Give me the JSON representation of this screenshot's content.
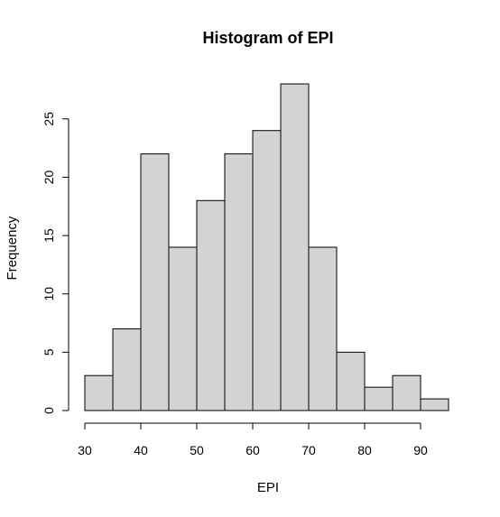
{
  "chart_data": {
    "type": "bar",
    "title": "Histogram of EPI",
    "xlabel": "EPI",
    "ylabel": "Frequency",
    "bin_edges": [
      30,
      35,
      40,
      45,
      50,
      55,
      60,
      65,
      70,
      75,
      80,
      85,
      90,
      95
    ],
    "values": [
      3,
      7,
      22,
      14,
      18,
      22,
      24,
      28,
      14,
      5,
      2,
      3,
      1
    ],
    "xlim": [
      30,
      95
    ],
    "ylim": [
      0,
      28
    ],
    "x_ticks": [
      30,
      40,
      50,
      60,
      70,
      80,
      90
    ],
    "y_ticks": [
      0,
      5,
      10,
      15,
      20,
      25
    ],
    "grid": false,
    "legend": "none",
    "colors": {
      "bar_fill": "#d3d3d3",
      "bar_stroke": "#000000",
      "axis": "#000000"
    }
  }
}
